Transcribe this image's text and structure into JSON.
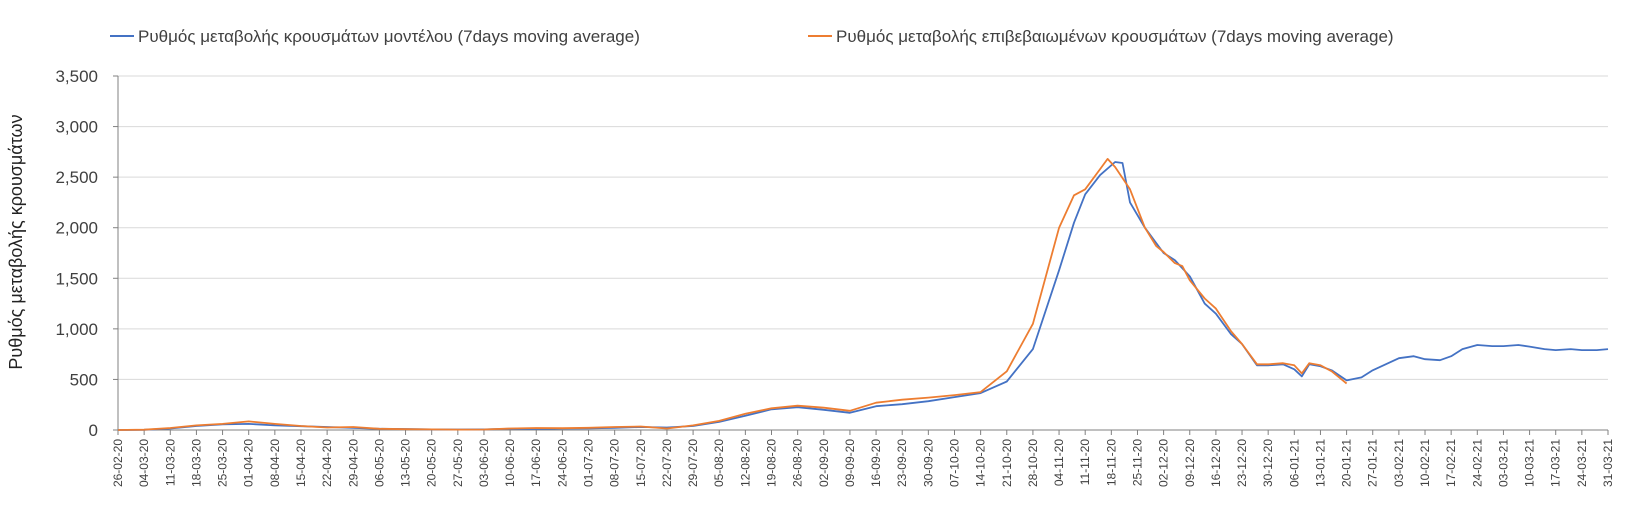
{
  "chart_data": {
    "type": "line",
    "title": "",
    "xlabel": "",
    "ylabel": "Ρυθμός μεταβολής κρουσμάτων",
    "ylim": [
      0,
      3500
    ],
    "yticks": [
      0,
      500,
      1000,
      1500,
      2000,
      2500,
      3000,
      3500
    ],
    "ytick_labels": [
      "0",
      "500",
      "1,000",
      "1,500",
      "2,000",
      "2,500",
      "3,000",
      "3,500"
    ],
    "grid": true,
    "legend_position": "top",
    "x_start": "2020-02-26",
    "x_end": "2021-03-31",
    "x_tick_labels": [
      "26-02-20",
      "04-03-20",
      "11-03-20",
      "18-03-20",
      "25-03-20",
      "01-04-20",
      "08-04-20",
      "15-04-20",
      "22-04-20",
      "29-04-20",
      "06-05-20",
      "13-05-20",
      "20-05-20",
      "27-05-20",
      "03-06-20",
      "10-06-20",
      "17-06-20",
      "24-06-20",
      "01-07-20",
      "08-07-20",
      "15-07-20",
      "22-07-20",
      "29-07-20",
      "05-08-20",
      "12-08-20",
      "19-08-20",
      "26-08-20",
      "02-09-20",
      "09-09-20",
      "16-09-20",
      "23-09-20",
      "30-09-20",
      "07-10-20",
      "14-10-20",
      "21-10-20",
      "28-10-20",
      "04-11-20",
      "11-11-20",
      "18-11-20",
      "25-11-20",
      "02-12-20",
      "09-12-20",
      "16-12-20",
      "23-12-20",
      "30-12-20",
      "06-01-21",
      "13-01-21",
      "20-01-21",
      "27-01-21",
      "03-02-21",
      "10-02-21",
      "17-02-21",
      "24-02-21",
      "03-03-21",
      "10-03-21",
      "17-03-21",
      "24-03-21",
      "31-03-21"
    ],
    "series": [
      {
        "name": "Ρυθμός μεταβολής κρουσμάτων μοντέλου (7days moving average)",
        "color": "#4472c4",
        "points": [
          [
            "2020-02-26",
            0
          ],
          [
            "2020-03-04",
            2
          ],
          [
            "2020-03-11",
            15
          ],
          [
            "2020-03-18",
            40
          ],
          [
            "2020-03-25",
            55
          ],
          [
            "2020-04-01",
            60
          ],
          [
            "2020-04-08",
            45
          ],
          [
            "2020-04-15",
            38
          ],
          [
            "2020-04-22",
            30
          ],
          [
            "2020-04-29",
            22
          ],
          [
            "2020-05-06",
            12
          ],
          [
            "2020-05-13",
            10
          ],
          [
            "2020-05-20",
            6
          ],
          [
            "2020-05-27",
            5
          ],
          [
            "2020-06-03",
            6
          ],
          [
            "2020-06-10",
            12
          ],
          [
            "2020-06-17",
            12
          ],
          [
            "2020-06-24",
            15
          ],
          [
            "2020-07-01",
            17
          ],
          [
            "2020-07-08",
            22
          ],
          [
            "2020-07-15",
            30
          ],
          [
            "2020-07-22",
            25
          ],
          [
            "2020-07-29",
            40
          ],
          [
            "2020-08-05",
            80
          ],
          [
            "2020-08-12",
            140
          ],
          [
            "2020-08-19",
            205
          ],
          [
            "2020-08-26",
            225
          ],
          [
            "2020-09-02",
            200
          ],
          [
            "2020-09-09",
            170
          ],
          [
            "2020-09-16",
            235
          ],
          [
            "2020-09-23",
            255
          ],
          [
            "2020-09-30",
            285
          ],
          [
            "2020-10-07",
            325
          ],
          [
            "2020-10-14",
            365
          ],
          [
            "2020-10-21",
            480
          ],
          [
            "2020-10-28",
            800
          ],
          [
            "2020-11-04",
            1580
          ],
          [
            "2020-11-08",
            2050
          ],
          [
            "2020-11-11",
            2330
          ],
          [
            "2020-11-15",
            2520
          ],
          [
            "2020-11-19",
            2650
          ],
          [
            "2020-11-21",
            2640
          ],
          [
            "2020-11-23",
            2250
          ],
          [
            "2020-11-27",
            2000
          ],
          [
            "2020-11-30",
            1850
          ],
          [
            "2020-12-02",
            1750
          ],
          [
            "2020-12-05",
            1680
          ],
          [
            "2020-12-09",
            1520
          ],
          [
            "2020-12-13",
            1250
          ],
          [
            "2020-12-16",
            1150
          ],
          [
            "2020-12-20",
            950
          ],
          [
            "2020-12-23",
            850
          ],
          [
            "2020-12-27",
            640
          ],
          [
            "2020-12-30",
            640
          ],
          [
            "2021-01-03",
            650
          ],
          [
            "2021-01-06",
            600
          ],
          [
            "2021-01-08",
            530
          ],
          [
            "2021-01-10",
            650
          ],
          [
            "2021-01-13",
            630
          ],
          [
            "2021-01-16",
            590
          ],
          [
            "2021-01-20",
            490
          ],
          [
            "2021-01-24",
            520
          ],
          [
            "2021-01-27",
            590
          ],
          [
            "2021-02-03",
            710
          ],
          [
            "2021-02-07",
            730
          ],
          [
            "2021-02-10",
            700
          ],
          [
            "2021-02-14",
            690
          ],
          [
            "2021-02-17",
            730
          ],
          [
            "2021-02-20",
            800
          ],
          [
            "2021-02-24",
            840
          ],
          [
            "2021-02-28",
            830
          ],
          [
            "2021-03-03",
            830
          ],
          [
            "2021-03-07",
            840
          ],
          [
            "2021-03-10",
            825
          ],
          [
            "2021-03-14",
            800
          ],
          [
            "2021-03-17",
            790
          ],
          [
            "2021-03-21",
            800
          ],
          [
            "2021-03-24",
            790
          ],
          [
            "2021-03-28",
            790
          ],
          [
            "2021-03-31",
            800
          ]
        ]
      },
      {
        "name": "Ρυθμός μεταβολής επιβεβαιωμένων κρουσμάτων (7days moving average)",
        "color": "#ed7d31",
        "points": [
          [
            "2020-02-26",
            0
          ],
          [
            "2020-03-04",
            3
          ],
          [
            "2020-03-11",
            20
          ],
          [
            "2020-03-18",
            45
          ],
          [
            "2020-03-25",
            60
          ],
          [
            "2020-04-01",
            85
          ],
          [
            "2020-04-08",
            60
          ],
          [
            "2020-04-15",
            40
          ],
          [
            "2020-04-22",
            25
          ],
          [
            "2020-04-29",
            30
          ],
          [
            "2020-05-06",
            12
          ],
          [
            "2020-05-13",
            8
          ],
          [
            "2020-05-20",
            6
          ],
          [
            "2020-05-27",
            4
          ],
          [
            "2020-06-03",
            5
          ],
          [
            "2020-06-10",
            15
          ],
          [
            "2020-06-17",
            20
          ],
          [
            "2020-06-24",
            18
          ],
          [
            "2020-07-01",
            22
          ],
          [
            "2020-07-08",
            30
          ],
          [
            "2020-07-15",
            35
          ],
          [
            "2020-07-22",
            15
          ],
          [
            "2020-07-29",
            45
          ],
          [
            "2020-08-05",
            90
          ],
          [
            "2020-08-12",
            160
          ],
          [
            "2020-08-19",
            215
          ],
          [
            "2020-08-26",
            240
          ],
          [
            "2020-09-02",
            220
          ],
          [
            "2020-09-09",
            190
          ],
          [
            "2020-09-16",
            270
          ],
          [
            "2020-09-23",
            300
          ],
          [
            "2020-09-30",
            320
          ],
          [
            "2020-10-07",
            345
          ],
          [
            "2020-10-14",
            375
          ],
          [
            "2020-10-21",
            580
          ],
          [
            "2020-10-28",
            1050
          ],
          [
            "2020-11-04",
            2000
          ],
          [
            "2020-11-08",
            2320
          ],
          [
            "2020-11-11",
            2380
          ],
          [
            "2020-11-15",
            2580
          ],
          [
            "2020-11-17",
            2680
          ],
          [
            "2020-11-19",
            2600
          ],
          [
            "2020-11-23",
            2380
          ],
          [
            "2020-11-27",
            2000
          ],
          [
            "2020-11-30",
            1820
          ],
          [
            "2020-12-02",
            1760
          ],
          [
            "2020-12-05",
            1650
          ],
          [
            "2020-12-07",
            1620
          ],
          [
            "2020-12-09",
            1480
          ],
          [
            "2020-12-13",
            1300
          ],
          [
            "2020-12-16",
            1200
          ],
          [
            "2020-12-20",
            980
          ],
          [
            "2020-12-23",
            850
          ],
          [
            "2020-12-27",
            650
          ],
          [
            "2020-12-30",
            650
          ],
          [
            "2021-01-03",
            660
          ],
          [
            "2021-01-06",
            640
          ],
          [
            "2021-01-08",
            560
          ],
          [
            "2021-01-10",
            660
          ],
          [
            "2021-01-13",
            640
          ],
          [
            "2021-01-16",
            580
          ],
          [
            "2021-01-20",
            460
          ]
        ]
      }
    ]
  }
}
